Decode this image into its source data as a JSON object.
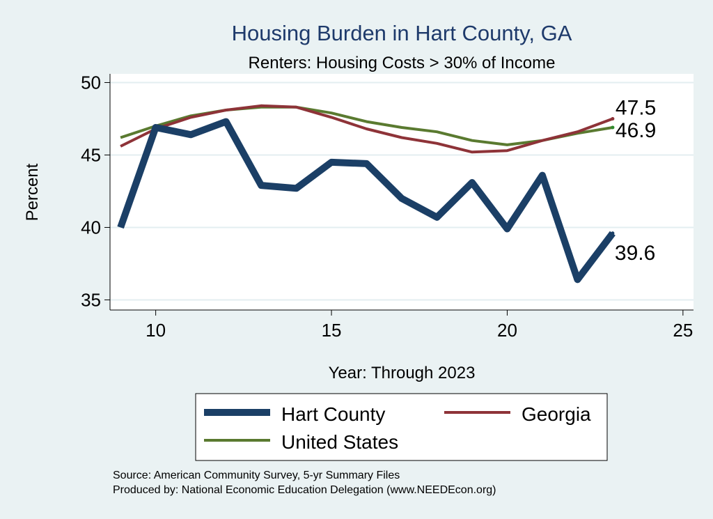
{
  "chart_data": {
    "type": "line",
    "title": "Housing Burden in Hart County, GA",
    "subtitle": "Renters: Housing Costs > 30% of Income",
    "xlabel": "Year: Through 2023",
    "ylabel": "Percent",
    "xlim": [
      8.7,
      25.3
    ],
    "ylim": [
      34.3,
      50.6
    ],
    "x_ticks": [
      10,
      15,
      20,
      25
    ],
    "y_ticks": [
      35,
      40,
      45,
      50
    ],
    "grid": true,
    "x": [
      9,
      10,
      11,
      12,
      13,
      14,
      15,
      16,
      17,
      18,
      19,
      20,
      21,
      22,
      23
    ],
    "series": [
      {
        "name": "Hart County",
        "color": "#1b3f66",
        "values": [
          40.0,
          46.9,
          46.4,
          47.3,
          42.9,
          42.7,
          44.5,
          44.4,
          42.0,
          40.7,
          43.1,
          39.9,
          43.6,
          36.4,
          39.6
        ],
        "end_label": "39.6"
      },
      {
        "name": "Georgia",
        "color": "#8e3338",
        "values": [
          45.6,
          46.8,
          47.6,
          48.1,
          48.4,
          48.3,
          47.6,
          46.8,
          46.2,
          45.8,
          45.2,
          45.3,
          46.0,
          46.6,
          47.5
        ],
        "end_label": "47.5"
      },
      {
        "name": "United States",
        "color": "#5a7a30",
        "values": [
          46.2,
          47.0,
          47.7,
          48.1,
          48.3,
          48.3,
          47.9,
          47.3,
          46.9,
          46.6,
          46.0,
          45.7,
          46.0,
          46.5,
          46.9
        ],
        "end_label": "46.9"
      }
    ],
    "legend_position": "bottom"
  },
  "footer": {
    "source": "Source: American Community Survey, 5-yr Summary Files",
    "produced": "Produced by: National Economic Education Delegation (www.NEEDEcon.org)"
  }
}
